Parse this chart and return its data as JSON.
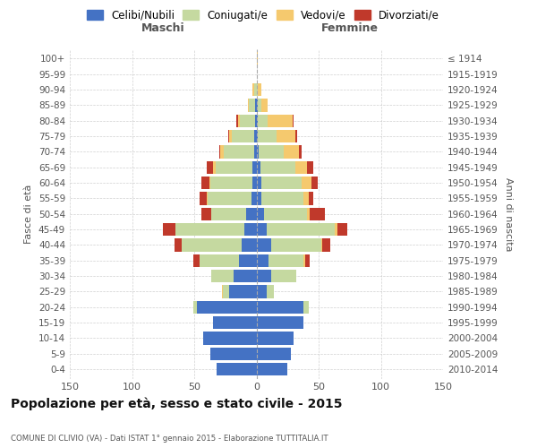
{
  "age_groups": [
    "0-4",
    "5-9",
    "10-14",
    "15-19",
    "20-24",
    "25-29",
    "30-34",
    "35-39",
    "40-44",
    "45-49",
    "50-54",
    "55-59",
    "60-64",
    "65-69",
    "70-74",
    "75-79",
    "80-84",
    "85-89",
    "90-94",
    "95-99",
    "100+"
  ],
  "birth_years": [
    "2010-2014",
    "2005-2009",
    "2000-2004",
    "1995-1999",
    "1990-1994",
    "1985-1989",
    "1980-1984",
    "1975-1979",
    "1970-1974",
    "1965-1969",
    "1960-1964",
    "1955-1959",
    "1950-1954",
    "1945-1949",
    "1940-1944",
    "1935-1939",
    "1930-1934",
    "1925-1929",
    "1920-1924",
    "1915-1919",
    "≤ 1914"
  ],
  "maschi": {
    "celibi": [
      32,
      37,
      43,
      35,
      48,
      22,
      18,
      14,
      12,
      10,
      8,
      4,
      3,
      3,
      2,
      2,
      1,
      1,
      0,
      0,
      0
    ],
    "coniugati": [
      0,
      0,
      0,
      0,
      3,
      5,
      18,
      32,
      48,
      55,
      28,
      35,
      34,
      30,
      24,
      18,
      12,
      5,
      2,
      0,
      0
    ],
    "vedovi": [
      0,
      0,
      0,
      0,
      0,
      1,
      0,
      0,
      0,
      0,
      0,
      1,
      1,
      2,
      3,
      2,
      2,
      1,
      1,
      0,
      0
    ],
    "divorziati": [
      0,
      0,
      0,
      0,
      0,
      0,
      0,
      5,
      6,
      10,
      8,
      6,
      6,
      5,
      1,
      1,
      1,
      0,
      0,
      0,
      0
    ]
  },
  "femmine": {
    "nubili": [
      25,
      28,
      30,
      38,
      38,
      8,
      12,
      10,
      12,
      8,
      6,
      4,
      4,
      3,
      2,
      1,
      1,
      1,
      0,
      0,
      0
    ],
    "coniugate": [
      0,
      0,
      0,
      0,
      4,
      6,
      20,
      28,
      40,
      55,
      35,
      34,
      32,
      28,
      20,
      15,
      8,
      3,
      1,
      0,
      0
    ],
    "vedove": [
      0,
      0,
      0,
      0,
      0,
      0,
      0,
      1,
      1,
      2,
      2,
      4,
      8,
      10,
      12,
      15,
      20,
      5,
      3,
      0,
      1
    ],
    "divorziate": [
      0,
      0,
      0,
      0,
      0,
      0,
      0,
      4,
      6,
      8,
      12,
      4,
      5,
      5,
      2,
      2,
      1,
      0,
      0,
      0,
      0
    ]
  },
  "colors": {
    "celibi": "#4472c4",
    "coniugati": "#c5d9a0",
    "vedovi": "#f5c96e",
    "divorziati": "#c0392b"
  },
  "legend_labels": [
    "Celibi/Nubili",
    "Coniugati/e",
    "Vedovi/e",
    "Divorziati/e"
  ],
  "title": "Popolazione per età, sesso e stato civile - 2015",
  "subtitle": "COMUNE DI CLIVIO (VA) - Dati ISTAT 1° gennaio 2015 - Elaborazione TUTTITALIA.IT",
  "label_maschi": "Maschi",
  "label_femmine": "Femmine",
  "ylabel_left": "Fasce di età",
  "ylabel_right": "Anni di nascita",
  "xlim": 150,
  "bg_color": "#ffffff",
  "grid_color": "#cccccc",
  "text_color": "#555555"
}
